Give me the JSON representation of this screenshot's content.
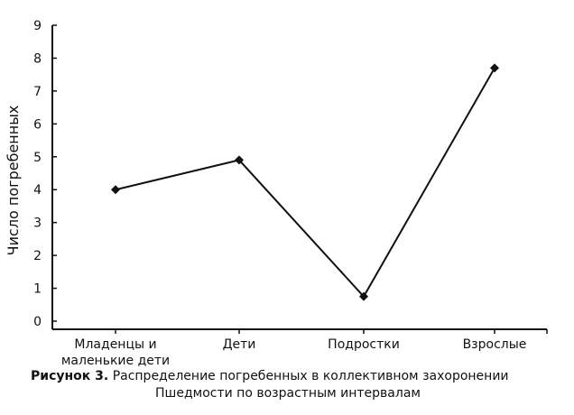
{
  "chart_data": {
    "type": "line",
    "categories": [
      [
        "Младенцы и",
        "маленькие дети"
      ],
      [
        "Дети"
      ],
      [
        "Подростки"
      ],
      [
        "Взрослые"
      ]
    ],
    "values": [
      4,
      4.9,
      0.75,
      7.7
    ],
    "ylabel": "Число погребенных",
    "xlabel": "",
    "ylim": [
      0,
      9
    ],
    "yticks": [
      "0",
      "1",
      "2",
      "3",
      "4",
      "5",
      "6",
      "7",
      "8",
      "9"
    ],
    "grid": false,
    "marker": "diamond",
    "line_color": "#111111"
  },
  "caption": {
    "label": "Рисунок 3.",
    "line1": "Распределение погребенных в коллективном захоронении",
    "line2": "Пшедмости по возрастным интервалам"
  }
}
